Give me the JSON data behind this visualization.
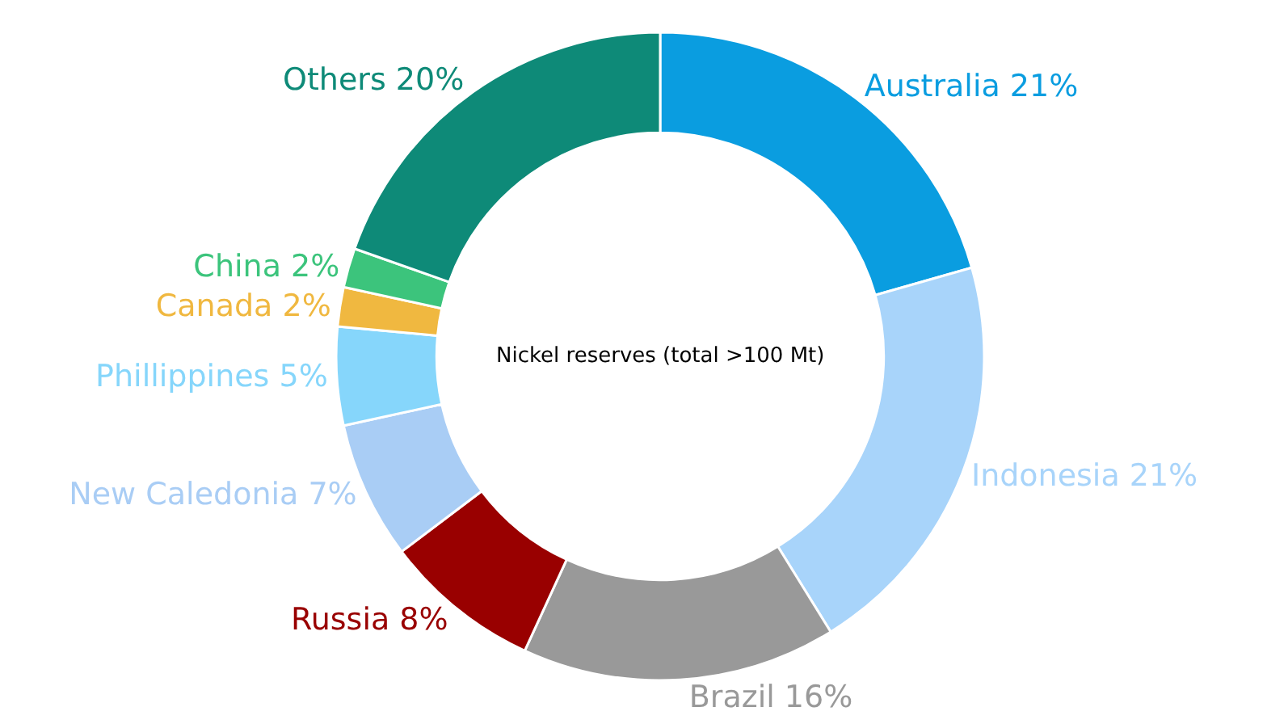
{
  "chart_data": {
    "type": "donut",
    "categories": [
      "Australia",
      "Indonesia",
      "Brazil",
      "Russia",
      "New Caledonia",
      "Phillippines",
      "Canada",
      "China",
      "Others"
    ],
    "values": [
      21,
      21,
      16,
      8,
      7,
      5,
      2,
      2,
      20
    ],
    "value_labels": [
      "21%",
      "21%",
      "16%",
      "8%",
      "7%",
      "5%",
      "2%",
      "2%",
      "20%"
    ],
    "colors": [
      "#0a9de0",
      "#a8d4fa",
      "#999999",
      "#990000",
      "#a9cdf5",
      "#86d6fb",
      "#f0b840",
      "#3cc47c",
      "#0e8a78"
    ],
    "annotations": [
      "Nickel reserves (total >100 Mt)"
    ],
    "legend": false
  }
}
